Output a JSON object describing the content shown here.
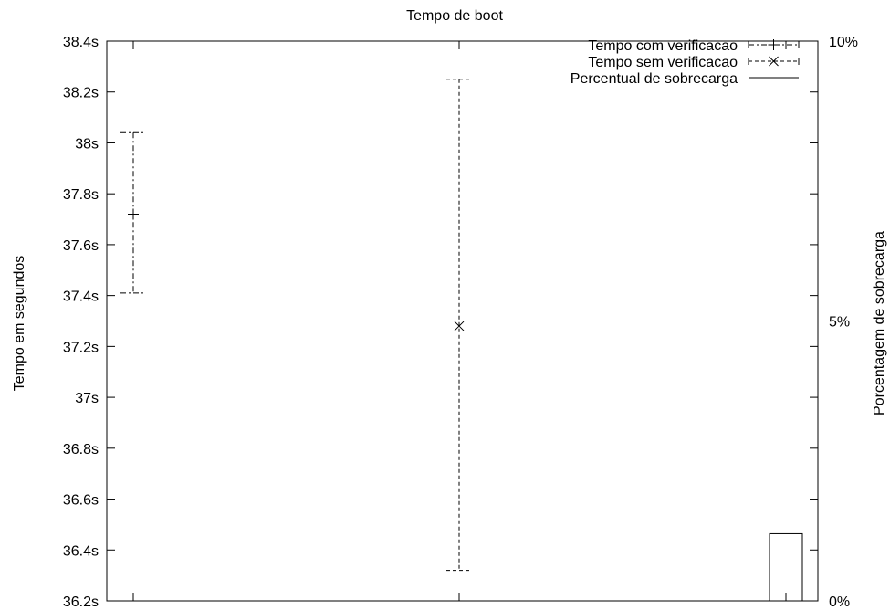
{
  "chart_data": {
    "type": "errorbar",
    "title": "Tempo de boot",
    "ylabel": "Tempo em segundos",
    "y2label": "Porcentagem de sobrecarga",
    "ylim": [
      36.2,
      38.4
    ],
    "y2lim": [
      0,
      10
    ],
    "y_ticks": [
      "36.2s",
      "36.4s",
      "36.6s",
      "36.8s",
      "37s",
      "37.2s",
      "37.4s",
      "37.6s",
      "37.8s",
      "38s",
      "38.2s",
      "38.4s"
    ],
    "y2_ticks": [
      "0%",
      "5%",
      "10%"
    ],
    "legend_position": "top-right",
    "series": [
      {
        "name": "Tempo com verificacao",
        "kind": "errorbar",
        "marker": "+",
        "dash": "dash-dot",
        "x_index": 0,
        "value": 37.72,
        "low": 37.41,
        "high": 38.04
      },
      {
        "name": "Tempo sem verificacao",
        "kind": "errorbar",
        "marker": "x",
        "dash": "dashed",
        "x_index": 1,
        "value": 37.28,
        "low": 36.32,
        "high": 38.25
      },
      {
        "name": "Percentual de sobrecarga",
        "kind": "bar",
        "axis": "y2",
        "x_index": 2,
        "value": 1.2
      }
    ]
  }
}
